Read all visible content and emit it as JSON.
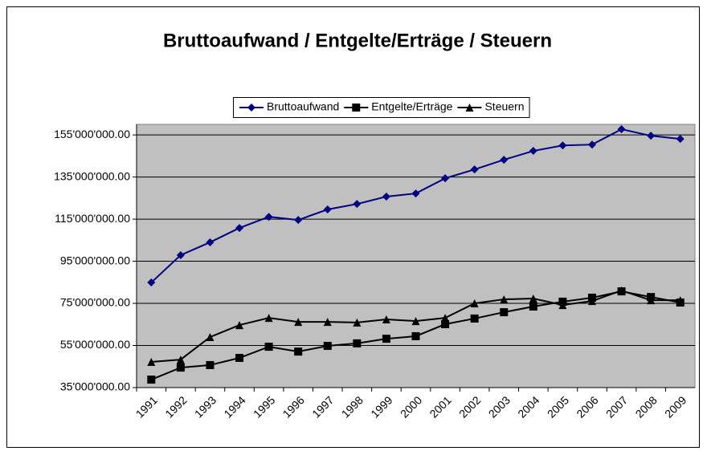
{
  "chart_data": {
    "type": "line",
    "title": "Bruttoaufwand / Entgelte/Erträge / Steuern",
    "categories": [
      "1991",
      "1992",
      "1993",
      "1994",
      "1995",
      "1996",
      "1997",
      "1998",
      "1999",
      "2000",
      "2001",
      "2002",
      "2003",
      "2004",
      "2005",
      "2006",
      "2007",
      "2008",
      "2009"
    ],
    "series": [
      {
        "name": "Bruttoaufwand",
        "color": "#000080",
        "marker": "diamond",
        "values": [
          84900000,
          97900000,
          104000000,
          110800000,
          116100000,
          114600000,
          119600000,
          122200000,
          125700000,
          127200000,
          134400000,
          138600000,
          143200000,
          147400000,
          150000000,
          150400000,
          157700000,
          154600000,
          153100000
        ]
      },
      {
        "name": "Entgelte/Erträge",
        "color": "#000000",
        "marker": "square",
        "values": [
          38800000,
          44500000,
          45700000,
          49100000,
          54400000,
          52100000,
          54800000,
          56000000,
          58200000,
          59400000,
          65100000,
          67800000,
          70800000,
          73500000,
          75800000,
          77700000,
          80700000,
          78000000,
          75400000
        ]
      },
      {
        "name": "Steuern",
        "color": "#000000",
        "marker": "triangle",
        "values": [
          47200000,
          48300000,
          59000000,
          64700000,
          68100000,
          66200000,
          66200000,
          65900000,
          67400000,
          66600000,
          68100000,
          75000000,
          76900000,
          77300000,
          74200000,
          76100000,
          81100000,
          76500000,
          76500000
        ]
      }
    ],
    "ylim": [
      35000000,
      160000000
    ],
    "yticks": [
      {
        "value": 35000000,
        "label": "35'000'000.00"
      },
      {
        "value": 55000000,
        "label": "55'000'000.00"
      },
      {
        "value": 75000000,
        "label": "75'000'000.00"
      },
      {
        "value": 95000000,
        "label": "95'000'000.00"
      },
      {
        "value": 115000000,
        "label": "115'000'000.00"
      },
      {
        "value": 135000000,
        "label": "135'000'000.00"
      },
      {
        "value": 155000000,
        "label": "155'000'000.00"
      }
    ],
    "grid": true,
    "legend": "top",
    "plot_background": "#c0c0c0"
  }
}
